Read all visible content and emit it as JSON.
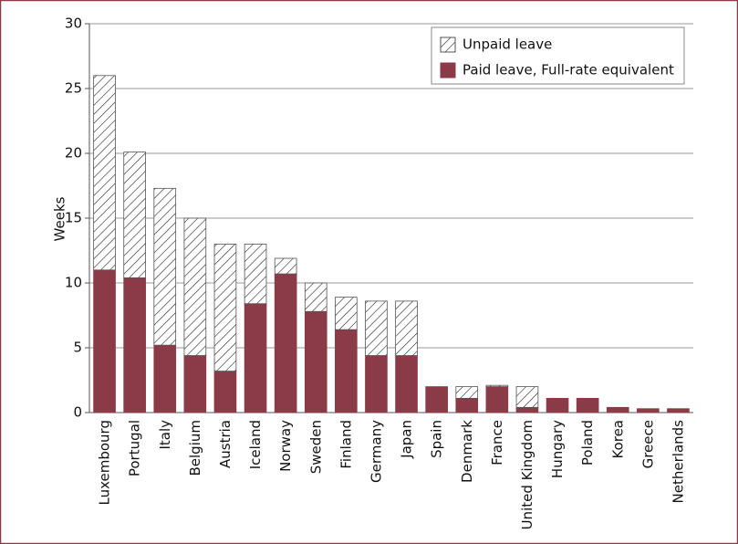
{
  "chart_data": {
    "type": "stacked-bar",
    "y_label": "Weeks",
    "categories": [
      "Luxembourg",
      "Portugal",
      "Italy",
      "Belgium",
      "Austria",
      "Iceland",
      "Norway",
      "Sweden",
      "Finland",
      "Germany",
      "Japan",
      "Spain",
      "Denmark",
      "France",
      "United Kingdom",
      "Hungary",
      "Poland",
      "Korea",
      "Greece",
      "Netherlands"
    ],
    "series": [
      {
        "name": "Paid leave, Full-rate equivalent",
        "color": "#8b3a47",
        "pattern": "solid",
        "values": [
          11,
          10.4,
          5.2,
          4.4,
          3.2,
          8.4,
          10.7,
          7.8,
          6.4,
          4.4,
          4.4,
          2.0,
          1.1,
          2.0,
          0.4,
          1.1,
          1.1,
          0.4,
          0.3,
          0.3
        ]
      },
      {
        "name": "Unpaid leave",
        "color": "#222222",
        "pattern": "hatch",
        "values": [
          15,
          9.7,
          12.1,
          10.6,
          9.8,
          4.6,
          1.2,
          2.2,
          2.5,
          4.2,
          4.2,
          0,
          0.9,
          0.1,
          1.6,
          0,
          0,
          0,
          0,
          0
        ]
      }
    ],
    "ylim": [
      0,
      30
    ],
    "yticks": [
      0,
      5,
      10,
      15,
      20,
      25,
      30
    ],
    "grid": true,
    "legend": "top-right"
  }
}
